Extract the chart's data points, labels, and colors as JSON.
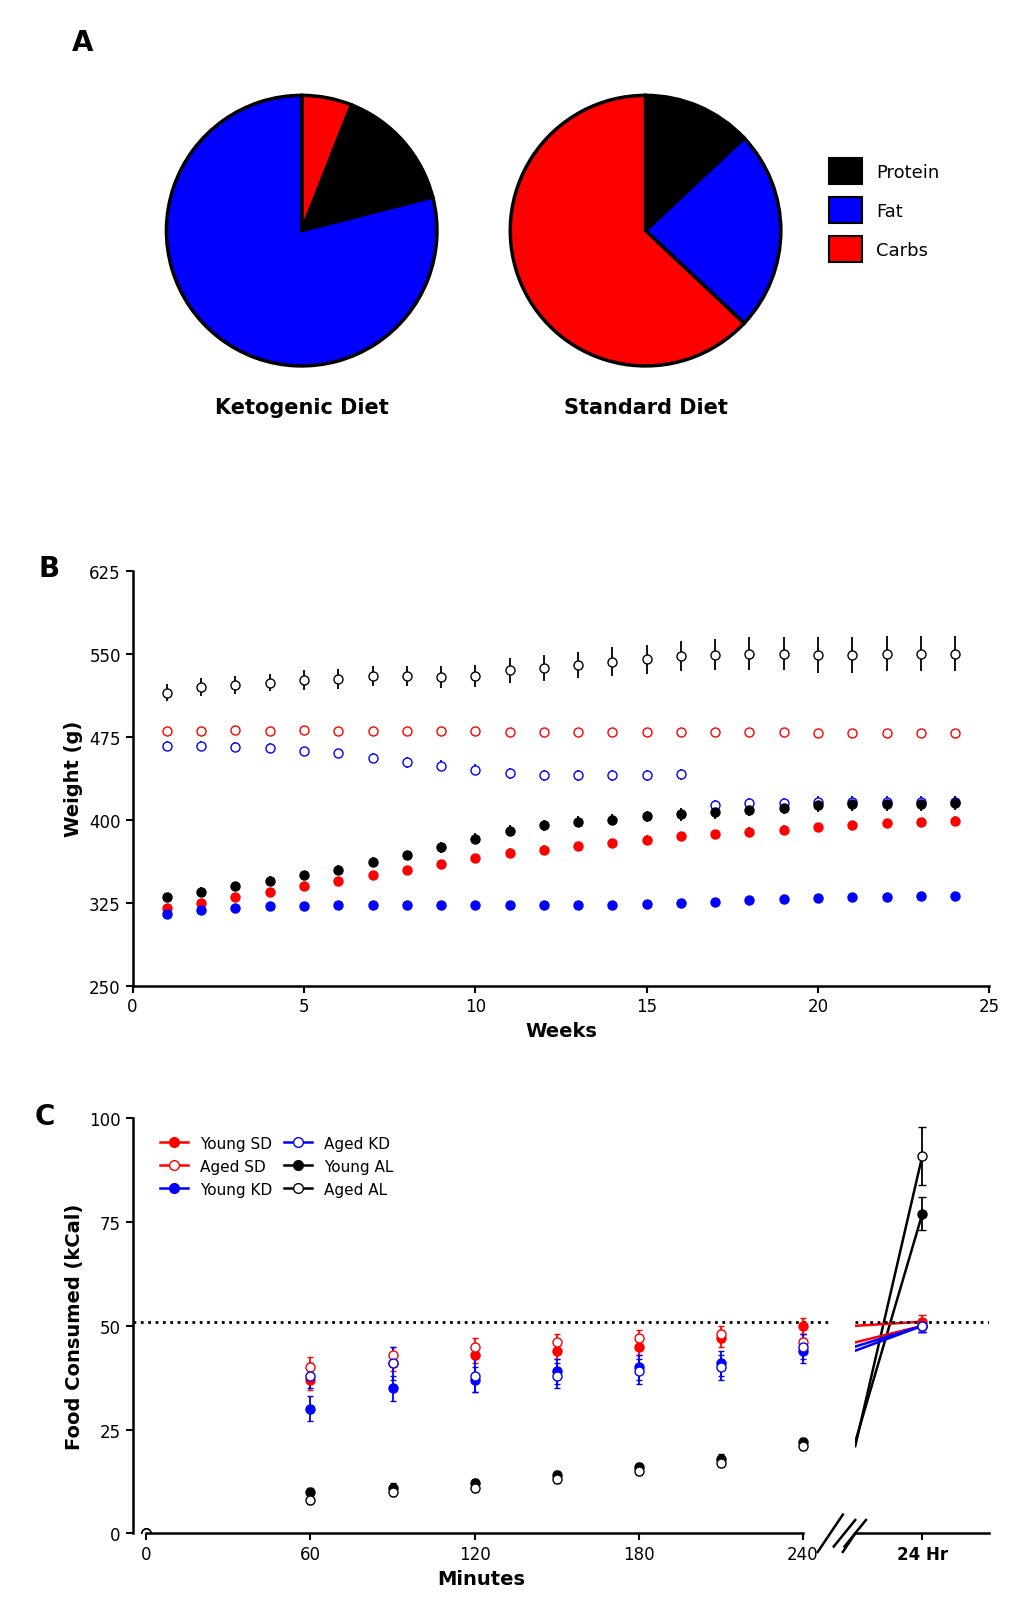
{
  "panel_A": {
    "kd_sizes": [
      6,
      15,
      79
    ],
    "kd_colors": [
      "#FF0000",
      "#000000",
      "#0000FF"
    ],
    "sd_sizes": [
      13,
      24,
      63
    ],
    "sd_colors": [
      "#000000",
      "#0000FF",
      "#FF0000"
    ],
    "kd_startangle": 90,
    "sd_startangle": 90,
    "kd_title": "Ketogenic Diet",
    "sd_title": "Standard Diet",
    "legend_labels": [
      "Protein",
      "Fat",
      "Carbs"
    ],
    "legend_colors": [
      "#000000",
      "#0000FF",
      "#FF0000"
    ]
  },
  "panel_B": {
    "weeks": [
      1,
      2,
      3,
      4,
      5,
      6,
      7,
      8,
      9,
      10,
      11,
      12,
      13,
      14,
      15,
      16,
      17,
      18,
      19,
      20,
      21,
      22,
      23,
      24
    ],
    "aged_AL": [
      515,
      520,
      522,
      524,
      526,
      527,
      530,
      530,
      529,
      530,
      535,
      537,
      540,
      543,
      545,
      548,
      549,
      550,
      550,
      549,
      549,
      550,
      550,
      550
    ],
    "aged_AL_err": [
      8,
      8,
      8,
      8,
      9,
      9,
      9,
      9,
      10,
      10,
      11,
      12,
      12,
      13,
      13,
      14,
      14,
      15,
      15,
      16,
      16,
      16,
      16,
      16
    ],
    "aged_SD": [
      480,
      480,
      481,
      480,
      481,
      480,
      480,
      480,
      480,
      480,
      479,
      479,
      479,
      479,
      479,
      479,
      479,
      479,
      479,
      478,
      478,
      478,
      478,
      478
    ],
    "aged_SD_err": [
      4,
      4,
      4,
      4,
      4,
      4,
      4,
      4,
      4,
      4,
      4,
      4,
      4,
      4,
      4,
      4,
      4,
      4,
      4,
      4,
      4,
      4,
      4,
      4
    ],
    "aged_KD": [
      467,
      467,
      466,
      465,
      462,
      460,
      456,
      452,
      449,
      445,
      442,
      440,
      440,
      440,
      440,
      441,
      413,
      415,
      415,
      416,
      416,
      416,
      416,
      416
    ],
    "aged_KD_err": [
      4,
      4,
      4,
      4,
      4,
      4,
      4,
      5,
      5,
      5,
      5,
      5,
      5,
      5,
      5,
      5,
      5,
      5,
      5,
      5,
      5,
      5,
      5,
      5
    ],
    "young_AL": [
      330,
      335,
      340,
      345,
      350,
      355,
      362,
      368,
      375,
      383,
      390,
      395,
      398,
      400,
      403,
      405,
      407,
      409,
      411,
      413,
      414,
      414,
      414,
      415
    ],
    "young_AL_err": [
      4,
      4,
      4,
      4,
      4,
      4,
      4,
      4,
      5,
      5,
      5,
      5,
      5,
      5,
      5,
      6,
      6,
      6,
      6,
      6,
      6,
      6,
      6,
      6
    ],
    "young_SD": [
      320,
      325,
      330,
      335,
      340,
      345,
      350,
      355,
      360,
      365,
      370,
      373,
      376,
      379,
      382,
      385,
      387,
      389,
      391,
      393,
      395,
      397,
      398,
      399
    ],
    "young_SD_err": [
      3,
      3,
      3,
      3,
      3,
      3,
      3,
      3,
      4,
      4,
      4,
      4,
      4,
      4,
      4,
      4,
      4,
      4,
      4,
      4,
      4,
      4,
      4,
      4
    ],
    "young_KD": [
      315,
      318,
      320,
      322,
      322,
      323,
      323,
      323,
      323,
      323,
      323,
      323,
      323,
      323,
      324,
      325,
      326,
      327,
      328,
      329,
      330,
      330,
      331,
      331
    ],
    "young_KD_err": [
      3,
      3,
      3,
      3,
      3,
      3,
      3,
      3,
      3,
      3,
      3,
      3,
      3,
      3,
      3,
      3,
      3,
      3,
      3,
      3,
      3,
      3,
      3,
      3
    ],
    "ylabel": "Weight (g)",
    "xlabel": "Weeks",
    "ylim": [
      250,
      625
    ],
    "yticks": [
      250,
      325,
      400,
      475,
      550,
      625
    ],
    "xticks": [
      0,
      5,
      10,
      15,
      20,
      25
    ]
  },
  "panel_C": {
    "minutes": [
      0,
      60,
      90,
      120,
      150,
      180,
      210,
      240
    ],
    "young_SD": [
      0,
      37,
      41,
      43,
      44,
      45,
      47,
      50
    ],
    "young_SD_err": [
      0,
      2.5,
      2,
      2,
      2,
      2,
      2,
      2
    ],
    "aged_SD": [
      0,
      40,
      43,
      45,
      46,
      47,
      48,
      46
    ],
    "aged_SD_err": [
      0,
      2.5,
      2,
      2,
      2,
      2,
      2,
      2
    ],
    "young_KD": [
      0,
      30,
      35,
      37,
      39,
      40,
      41,
      44
    ],
    "young_KD_err": [
      0,
      3,
      3,
      3,
      3,
      3,
      3,
      3
    ],
    "aged_KD": [
      0,
      38,
      41,
      38,
      38,
      39,
      40,
      45
    ],
    "aged_KD_err": [
      0,
      3,
      4,
      4,
      3,
      3,
      3,
      3
    ],
    "young_AL": [
      0,
      10,
      11,
      12,
      14,
      16,
      18,
      22
    ],
    "young_AL_err": [
      0,
      1,
      1,
      1,
      1,
      1,
      1,
      1
    ],
    "aged_AL": [
      0,
      8,
      10,
      11,
      13,
      15,
      17,
      21
    ],
    "aged_AL_err": [
      0,
      1,
      1,
      1,
      1,
      1,
      1,
      1
    ],
    "hr24_young_AL": 77,
    "hr24_young_AL_err": 4,
    "hr24_aged_AL": 91,
    "hr24_aged_AL_err": 7,
    "hr24_young_SD": 51,
    "hr24_young_SD_err": 1.5,
    "hr24_aged_SD": 50,
    "hr24_aged_SD_err": 1.5,
    "hr24_young_KD": 50,
    "hr24_young_KD_err": 1.5,
    "hr24_aged_KD": 50,
    "hr24_aged_KD_err": 1.5,
    "dotted_line_y": 51,
    "ylabel": "Food Consumed (kCal)",
    "xlabel": "Minutes",
    "ylim": [
      0,
      100
    ],
    "yticks": [
      0,
      25,
      50,
      75,
      100
    ],
    "xtick_vals": [
      0,
      60,
      120,
      180,
      240
    ],
    "xtick_labels": [
      "0",
      "60",
      "120",
      "180",
      "240"
    ]
  },
  "colors": {
    "red": "#FF0000",
    "blue": "#0000FF",
    "black": "#000000"
  }
}
